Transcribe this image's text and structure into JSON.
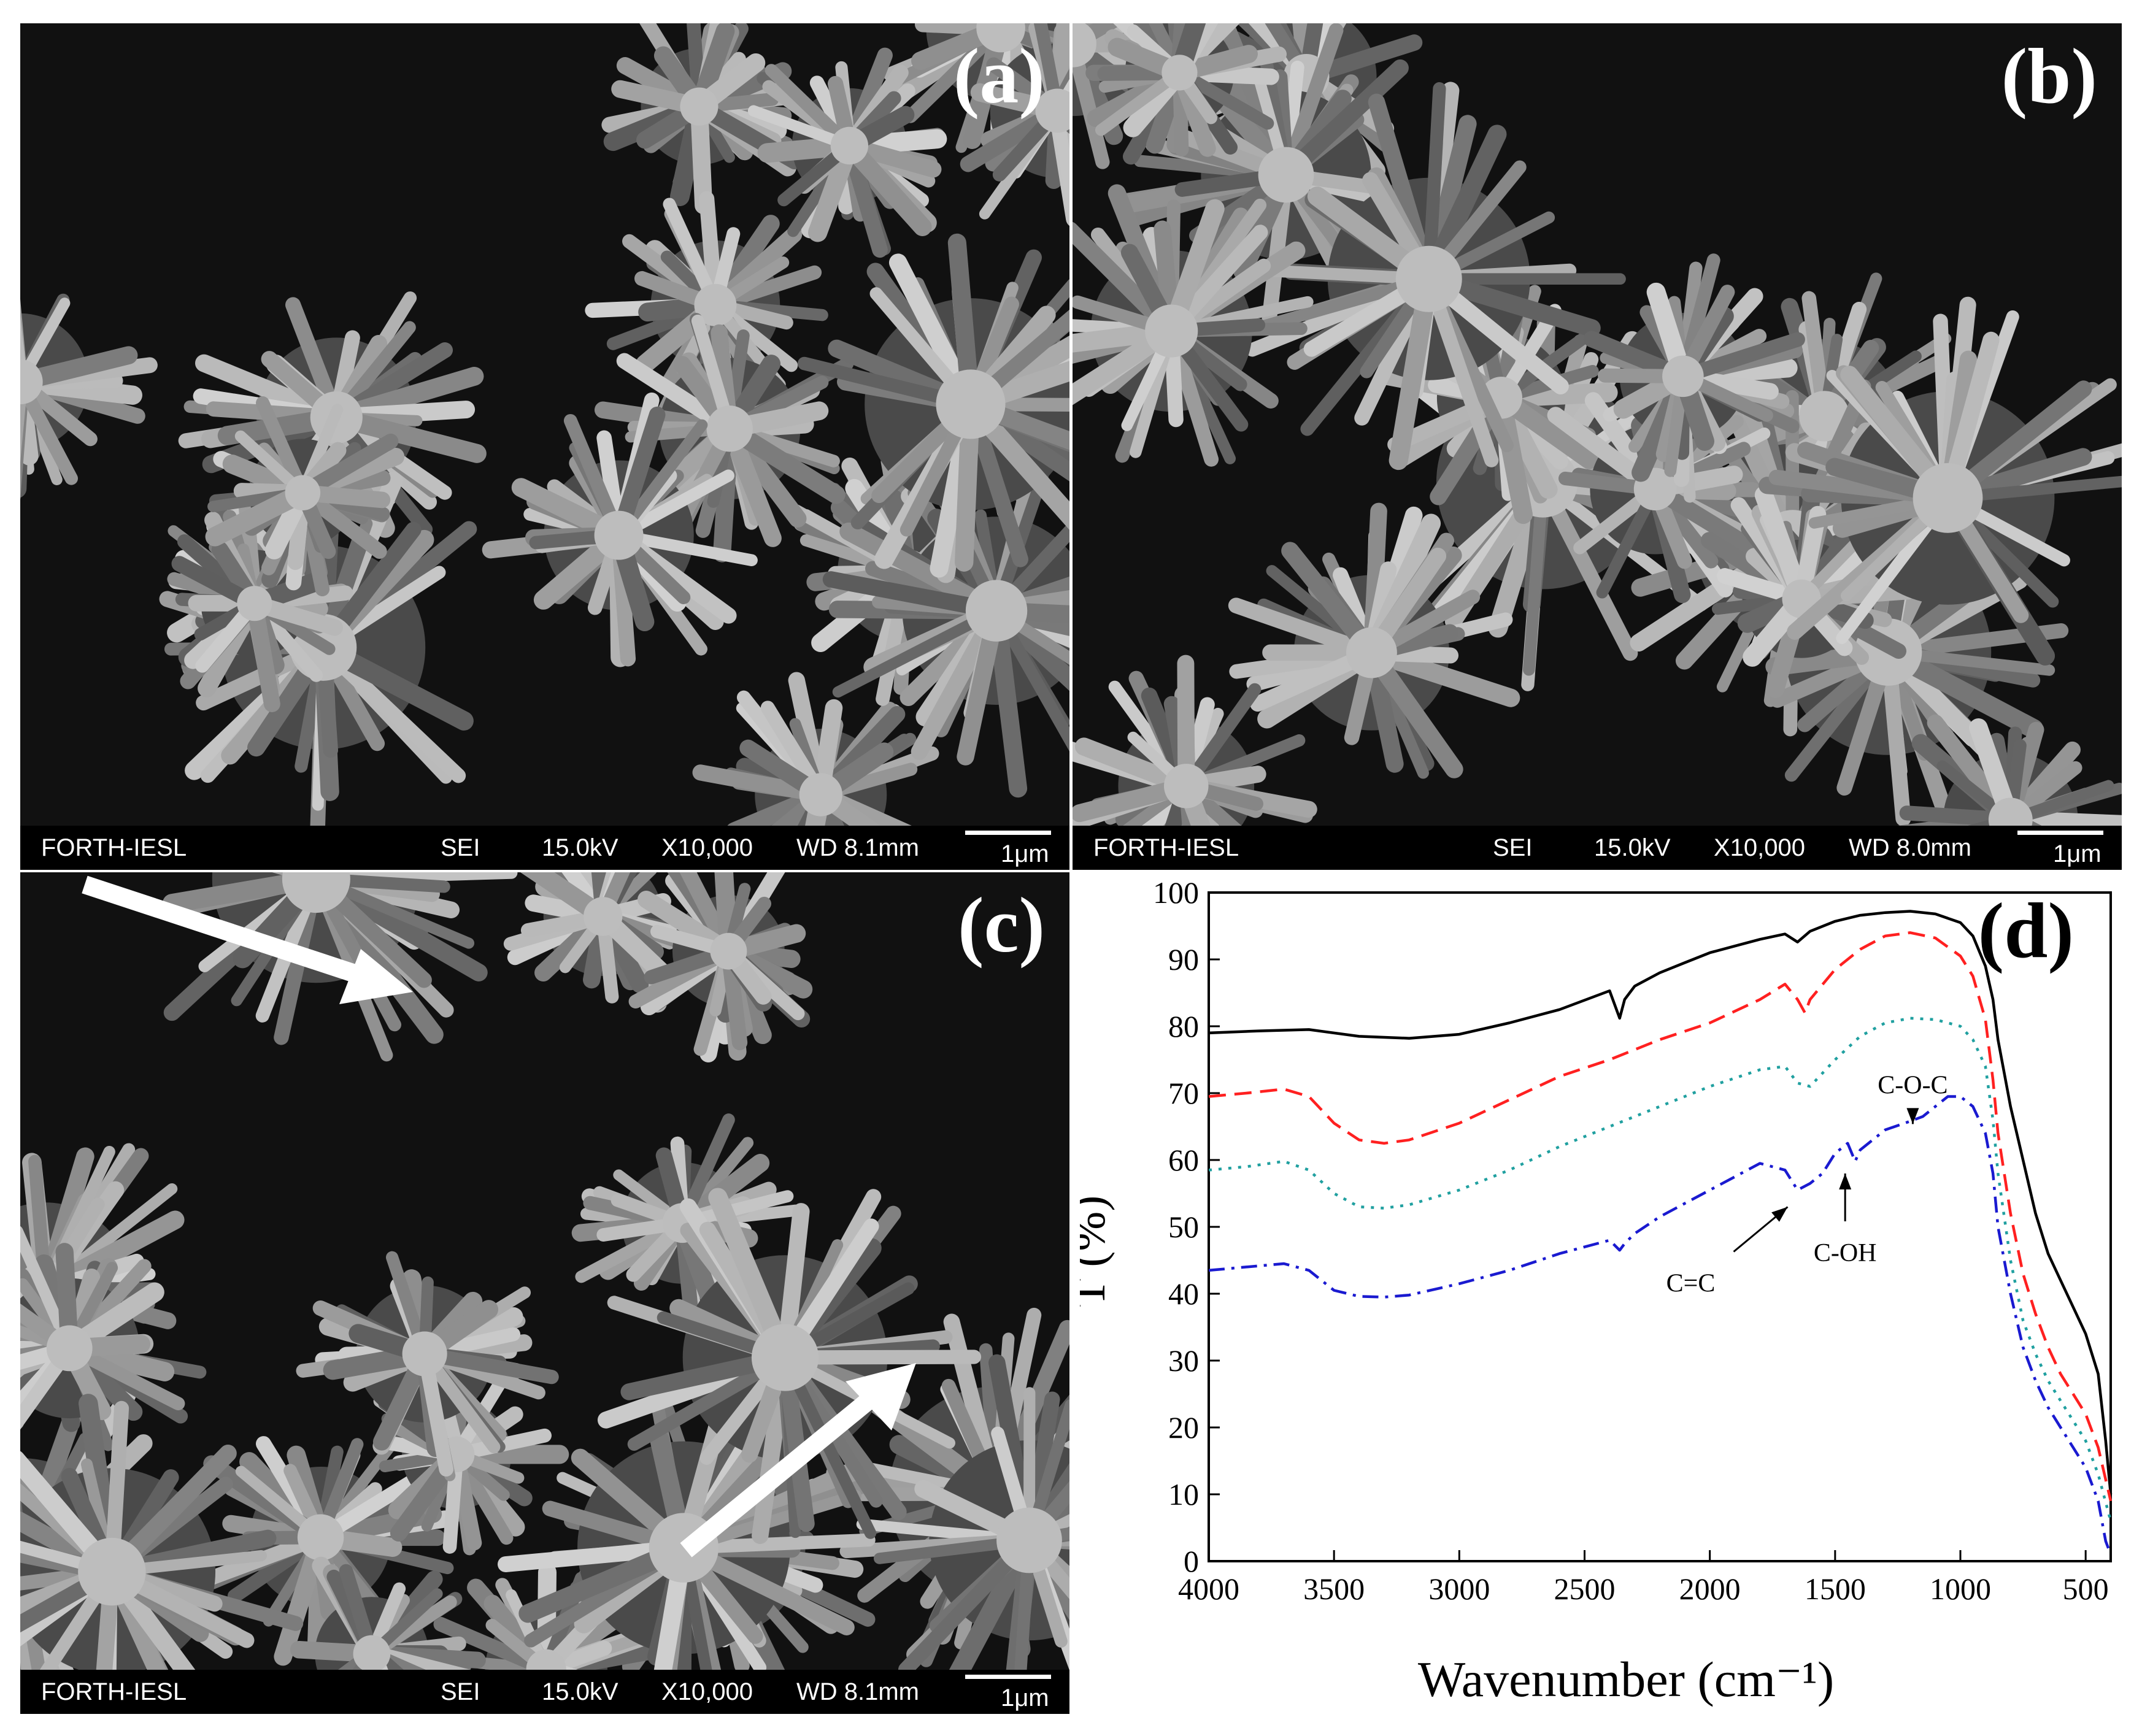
{
  "panels": [
    {
      "id": "a",
      "label": "(a)",
      "databar": {
        "lab": "FORTH-IESL",
        "mode": "SEI",
        "voltage": "15.0kV",
        "magnification": "X10,000",
        "wd": "WD 8.1mm",
        "scale": "1μm"
      }
    },
    {
      "id": "b",
      "label": "(b)",
      "databar": {
        "lab": "FORTH-IESL",
        "mode": "SEI",
        "voltage": "15.0kV",
        "magnification": "X10,000",
        "wd": "WD 8.0mm",
        "scale": "1μm"
      }
    },
    {
      "id": "c",
      "label": "(c)",
      "databar": {
        "lab": "FORTH-IESL",
        "mode": "SEI",
        "voltage": "15.0kV",
        "magnification": "X10,000",
        "wd": "WD 8.1mm",
        "scale": "1μm"
      }
    }
  ],
  "chart_panel_label": "(d)",
  "chart_data": {
    "type": "line",
    "title": "",
    "xlabel": "Wavenumber (cm⁻¹)",
    "ylabel": "T (%)",
    "xlim": [
      4000,
      400
    ],
    "ylim": [
      0,
      100
    ],
    "x_reversed": true,
    "x_ticks": [
      4000,
      3500,
      3000,
      2500,
      2000,
      1500,
      1000,
      500
    ],
    "y_ticks": [
      0,
      10,
      20,
      30,
      40,
      50,
      60,
      70,
      80,
      90,
      100
    ],
    "grid": false,
    "legend": "none",
    "series": [
      {
        "style": "solid",
        "color": "#000000",
        "x": [
          4000,
          3800,
          3600,
          3400,
          3200,
          3000,
          2800,
          2600,
          2400,
          2360,
          2340,
          2300,
          2200,
          2100,
          2000,
          1900,
          1800,
          1700,
          1650,
          1600,
          1500,
          1400,
          1300,
          1200,
          1100,
          1000,
          950,
          900,
          870,
          850,
          800,
          750,
          700,
          650,
          600,
          550,
          500,
          450,
          420,
          400
        ],
        "y": [
          79,
          79.3,
          79.5,
          78.5,
          78.2,
          78.8,
          80.5,
          82.5,
          85.3,
          81.2,
          84,
          86,
          88,
          89.5,
          91,
          92,
          93,
          93.8,
          92.6,
          94.2,
          95.7,
          96.6,
          97,
          97.2,
          96.8,
          95.5,
          93.5,
          89,
          84,
          78,
          68,
          60,
          52,
          46,
          42,
          38,
          34,
          28,
          18,
          10
        ]
      },
      {
        "style": "dashed",
        "color": "#ff2020",
        "x": [
          4000,
          3850,
          3700,
          3600,
          3500,
          3400,
          3300,
          3200,
          3000,
          2800,
          2600,
          2400,
          2200,
          2000,
          1800,
          1700,
          1650,
          1620,
          1600,
          1500,
          1400,
          1300,
          1200,
          1100,
          1000,
          950,
          900,
          870,
          850,
          800,
          750,
          700,
          650,
          600,
          550,
          500,
          450,
          400
        ],
        "y": [
          69.5,
          70,
          70.6,
          69.5,
          65.5,
          63,
          62.5,
          63,
          65.5,
          69,
          72.5,
          75,
          78,
          80.5,
          84,
          86.3,
          84,
          82,
          84,
          88.5,
          91.5,
          93.5,
          94,
          93.2,
          90.5,
          87.5,
          81,
          72,
          64,
          52,
          43,
          37,
          32,
          28,
          25,
          22,
          17,
          9
        ]
      },
      {
        "style": "dotted",
        "color": "#20a0a0",
        "x": [
          4000,
          3850,
          3700,
          3600,
          3500,
          3400,
          3300,
          3200,
          3000,
          2800,
          2600,
          2400,
          2200,
          2000,
          1800,
          1700,
          1650,
          1600,
          1500,
          1400,
          1300,
          1200,
          1100,
          1000,
          950,
          900,
          870,
          850,
          800,
          750,
          700,
          650,
          600,
          550,
          500,
          450,
          400
        ],
        "y": [
          58.5,
          59,
          59.8,
          58.5,
          55,
          53,
          52.8,
          53.3,
          55.5,
          58.5,
          62,
          65,
          68,
          71,
          73.5,
          74,
          71.5,
          71,
          75,
          78.5,
          80.5,
          81.2,
          81,
          80,
          78,
          74,
          66,
          58,
          45,
          36,
          31,
          27,
          24,
          21,
          18,
          13,
          6
        ]
      },
      {
        "style": "dashdot",
        "color": "#1a1ad0",
        "x": [
          4000,
          3850,
          3700,
          3600,
          3500,
          3400,
          3300,
          3200,
          3000,
          2800,
          2600,
          2400,
          2360,
          2340,
          2300,
          2200,
          2000,
          1900,
          1800,
          1700,
          1650,
          1600,
          1550,
          1500,
          1450,
          1420,
          1400,
          1300,
          1200,
          1150,
          1100,
          1050,
          1000,
          950,
          900,
          870,
          850,
          800,
          750,
          700,
          650,
          600,
          550,
          500,
          450,
          420,
          400
        ],
        "y": [
          43.5,
          44,
          44.5,
          43.5,
          40.5,
          39.6,
          39.5,
          39.8,
          41.5,
          43.5,
          46,
          48,
          46.5,
          47.5,
          49,
          51.5,
          55.5,
          57.5,
          59.5,
          58.5,
          55.5,
          56.5,
          58,
          61,
          62.5,
          59.8,
          61.5,
          64.5,
          65.8,
          66.5,
          68,
          69.5,
          69.5,
          68,
          64,
          58,
          50,
          40,
          32,
          27,
          23,
          20,
          17,
          14,
          9,
          3,
          1
        ]
      }
    ],
    "annotations": [
      {
        "text": "C=C",
        "x": 1660,
        "y": 55
      },
      {
        "text": "C-OH",
        "x": 1460,
        "y": 60
      },
      {
        "text": "C-O-C",
        "x": 1190,
        "y": 64
      }
    ]
  }
}
